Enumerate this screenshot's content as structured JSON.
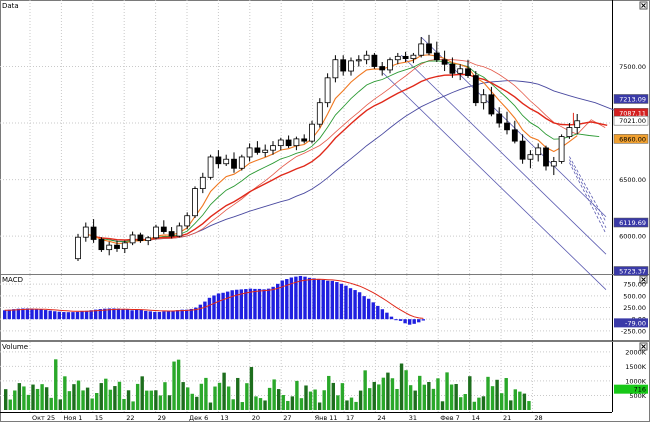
{
  "panels": {
    "price_title": "Data",
    "macd_title": "MACD",
    "volume_title": "Volume"
  },
  "colors": {
    "background": "#ffffff",
    "grid": "#c9c9c9",
    "axis_text": "#000000",
    "candle_up": "#ffffff",
    "candle_down": "#000000",
    "ma_blue": "#4a4aa0",
    "ma_red": "#e0291a",
    "ma_orange": "#f07820",
    "ma_green": "#2c9a34",
    "ma_thin_red": "#e45a4a",
    "channel": "#5a5ab0",
    "macd_hist": "#1f1fe0",
    "macd_signal": "#e0291a",
    "volume_bar": "#2aa82a",
    "volume_bar_dark": "#1d6e1d",
    "badge_blue": "#3a3aa8",
    "badge_red": "#d42020",
    "badge_orange": "#f0a030",
    "badge_green": "#18c818"
  },
  "chart_data": {
    "type": "candlestick",
    "x_tick_labels": [
      "Окт 25",
      "Ноя 1",
      "15",
      "22",
      "29",
      "Дек 6",
      "13",
      "20",
      "27",
      "Янв 11",
      "17",
      "24",
      "31",
      "Фев 7",
      "14",
      "21",
      "28"
    ],
    "price_axis": {
      "ylim": [
        5700,
        8000
      ],
      "tick_values": [
        6000,
        6500,
        7000,
        7500
      ],
      "tick_labels": [
        "6000.00",
        "6500.00",
        "7000.00",
        "7500.00"
      ],
      "badges": [
        {
          "label": "7213.09",
          "value": 7213,
          "color": "blue",
          "text_color": "#ffffff"
        },
        {
          "label": "7087.11",
          "value": 7090,
          "color": "red",
          "text_color": "#ffffff"
        },
        {
          "label": "7021.00",
          "value": 7021,
          "color": "white",
          "text_color": "#000000"
        },
        {
          "label": "6860.00",
          "value": 6860,
          "color": "orange",
          "text_color": "#000000"
        },
        {
          "label": "6119.69",
          "value": 6120,
          "color": "blue",
          "text_color": "#ffffff"
        },
        {
          "label": "5723.37",
          "value": 5723,
          "color": "blue",
          "text_color": "#ffffff"
        }
      ]
    },
    "candles": [
      [
        5800,
        6020,
        5780,
        5990
      ],
      [
        5990,
        6120,
        5950,
        6080
      ],
      [
        6080,
        6150,
        5940,
        5970
      ],
      [
        5970,
        5990,
        5860,
        5880
      ],
      [
        5880,
        5950,
        5830,
        5920
      ],
      [
        5920,
        5960,
        5860,
        5890
      ],
      [
        5890,
        5960,
        5850,
        5940
      ],
      [
        5940,
        6040,
        5920,
        6010
      ],
      [
        6010,
        6030,
        5940,
        5960
      ],
      [
        5960,
        6000,
        5920,
        5985
      ],
      [
        5985,
        6100,
        5970,
        6080
      ],
      [
        6080,
        6140,
        6020,
        6040
      ],
      [
        6040,
        6080,
        5980,
        6000
      ],
      [
        6000,
        6120,
        5990,
        6090
      ],
      [
        6090,
        6210,
        6060,
        6180
      ],
      [
        6180,
        6440,
        6160,
        6420
      ],
      [
        6420,
        6560,
        6380,
        6520
      ],
      [
        6520,
        6720,
        6500,
        6700
      ],
      [
        6700,
        6760,
        6600,
        6640
      ],
      [
        6640,
        6720,
        6620,
        6680
      ],
      [
        6680,
        6740,
        6560,
        6600
      ],
      [
        6600,
        6720,
        6580,
        6700
      ],
      [
        6700,
        6820,
        6660,
        6780
      ],
      [
        6780,
        6840,
        6720,
        6740
      ],
      [
        6740,
        6810,
        6700,
        6760
      ],
      [
        6760,
        6840,
        6720,
        6800
      ],
      [
        6800,
        6870,
        6760,
        6850
      ],
      [
        6850,
        6890,
        6780,
        6800
      ],
      [
        6800,
        6880,
        6760,
        6860
      ],
      [
        6860,
        6900,
        6820,
        6840
      ],
      [
        6840,
        7020,
        6820,
        6990
      ],
      [
        6990,
        7220,
        6960,
        7180
      ],
      [
        7180,
        7440,
        7140,
        7400
      ],
      [
        7400,
        7600,
        7360,
        7560
      ],
      [
        7560,
        7600,
        7420,
        7460
      ],
      [
        7460,
        7580,
        7420,
        7550
      ],
      [
        7550,
        7600,
        7500,
        7560
      ],
      [
        7560,
        7640,
        7520,
        7600
      ],
      [
        7600,
        7620,
        7480,
        7500
      ],
      [
        7500,
        7540,
        7420,
        7470
      ],
      [
        7470,
        7580,
        7440,
        7560
      ],
      [
        7560,
        7620,
        7520,
        7590
      ],
      [
        7590,
        7630,
        7540,
        7570
      ],
      [
        7570,
        7620,
        7530,
        7600
      ],
      [
        7600,
        7760,
        7580,
        7700
      ],
      [
        7700,
        7780,
        7600,
        7620
      ],
      [
        7620,
        7720,
        7540,
        7560
      ],
      [
        7560,
        7640,
        7460,
        7520
      ],
      [
        7520,
        7580,
        7400,
        7440
      ],
      [
        7440,
        7520,
        7380,
        7480
      ],
      [
        7480,
        7560,
        7400,
        7420
      ],
      [
        7420,
        7460,
        7150,
        7180
      ],
      [
        7180,
        7300,
        7120,
        7250
      ],
      [
        7250,
        7320,
        7060,
        7080
      ],
      [
        7080,
        7140,
        6960,
        7000
      ],
      [
        7000,
        7100,
        6900,
        6940
      ],
      [
        6940,
        7020,
        6820,
        6840
      ],
      [
        6840,
        6900,
        6640,
        6680
      ],
      [
        6680,
        6760,
        6600,
        6720
      ],
      [
        6720,
        6820,
        6660,
        6780
      ],
      [
        6780,
        6800,
        6580,
        6620
      ],
      [
        6620,
        6700,
        6540,
        6660
      ],
      [
        6660,
        6900,
        6640,
        6880
      ],
      [
        6880,
        7000,
        6860,
        6960
      ],
      [
        6960,
        7080,
        6900,
        7020
      ]
    ],
    "macd_axis": {
      "ylim": [
        -360,
        860
      ],
      "tick_values": [
        750,
        500,
        250,
        0,
        -250
      ],
      "tick_labels": [
        "750.00",
        "500.00",
        "250.00",
        "0.00",
        "-250.00"
      ],
      "badge": {
        "label": "-79.00",
        "value": -79
      }
    },
    "volume_axis": {
      "ylim": [
        0,
        2200
      ],
      "tick_values": [
        2000,
        1500,
        1000,
        500
      ],
      "tick_labels": [
        "2000K",
        "1500K",
        "1000K",
        "500K"
      ],
      "badge": {
        "label": "716",
        "value": 716
      }
    }
  }
}
